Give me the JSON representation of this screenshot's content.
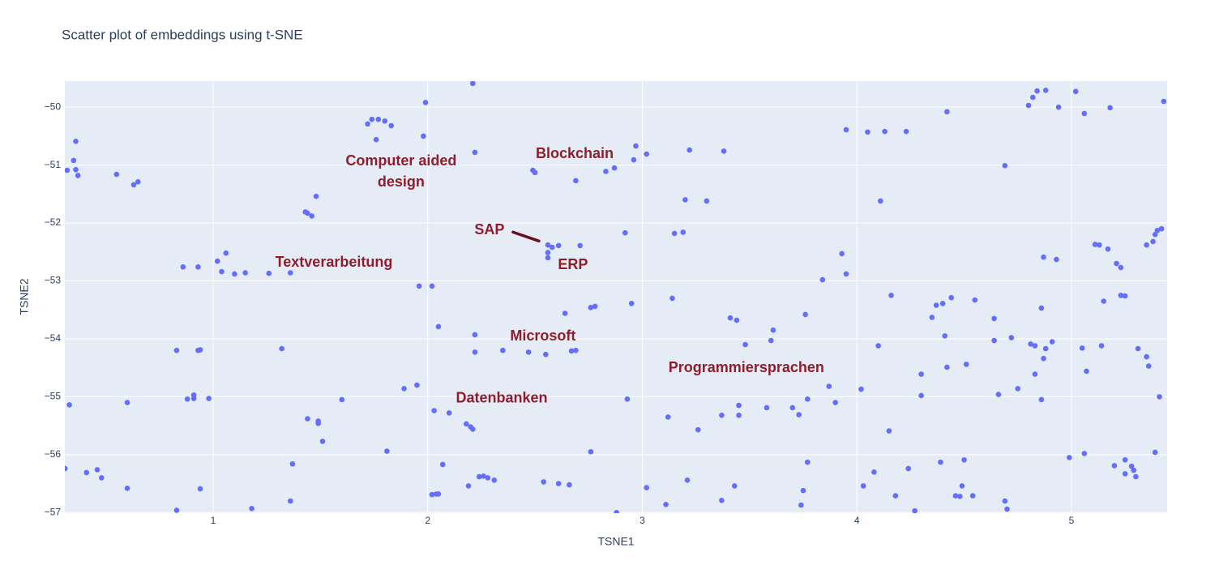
{
  "chart_data": {
    "type": "scatter",
    "title": "Scatter plot of embeddings using t-SNE",
    "x_label": "TSNE1",
    "y_label": "TSNE2",
    "color": "#636efa",
    "grid": true,
    "xlim": [
      0.309,
      5.446
    ],
    "ylim": [
      -57.01,
      -49.55
    ],
    "xticks": [
      1,
      2,
      3,
      4,
      5
    ],
    "yticks": [
      {
        "value": -50,
        "label": "−50"
      },
      {
        "value": -51,
        "label": "−51"
      },
      {
        "value": -52,
        "label": "−52"
      },
      {
        "value": -53,
        "label": "−53"
      },
      {
        "value": -54,
        "label": "−54"
      },
      {
        "value": -55,
        "label": "−55"
      },
      {
        "value": -56,
        "label": "−56"
      },
      {
        "value": -57,
        "label": "−57"
      }
    ],
    "x": [
      0.32,
      0.35,
      0.36,
      0.36,
      0.37,
      0.33,
      0.31,
      0.55,
      0.63,
      0.65,
      0.86,
      0.93,
      1.02,
      1.04,
      1.06,
      1.1,
      1.15,
      0.83,
      0.93,
      0.94,
      0.88,
      0.91,
      0.91,
      0.98,
      0.6,
      0.48,
      0.6,
      0.41,
      0.46,
      0.83,
      0.94,
      1.18,
      1.26,
      1.36,
      1.32,
      1.37,
      1.36,
      1.44,
      1.49,
      1.49,
      1.51,
      1.6,
      1.43,
      1.44,
      1.46,
      1.48,
      1.72,
      1.74,
      1.77,
      1.8,
      1.83,
      1.76,
      1.98,
      1.99,
      1.81,
      1.89,
      1.95,
      1.96,
      2.02,
      2.05,
      2.03,
      2.1,
      2.07,
      2.02,
      2.04,
      2.05,
      2.18,
      2.2,
      2.21,
      2.22,
      2.22,
      2.19,
      2.24,
      2.26,
      2.28,
      2.31,
      2.21,
      2.22,
      2.35,
      2.47,
      2.55,
      2.49,
      2.5,
      2.56,
      2.58,
      2.61,
      2.56,
      2.56,
      2.71,
      2.69,
      2.64,
      2.67,
      2.69,
      2.76,
      2.78,
      2.83,
      2.87,
      2.54,
      2.61,
      2.66,
      2.76,
      2.88,
      2.92,
      2.97,
      3.02,
      2.96,
      2.95,
      2.93,
      3.02,
      3.11,
      3.14,
      3.15,
      3.19,
      3.2,
      3.22,
      3.3,
      3.12,
      3.21,
      3.26,
      3.38,
      3.37,
      3.37,
      3.41,
      3.43,
      3.44,
      3.45,
      3.45,
      3.48,
      3.58,
      3.61,
      3.6,
      3.7,
      3.73,
      3.76,
      3.77,
      3.77,
      3.75,
      3.74,
      3.84,
      3.87,
      3.9,
      3.93,
      3.95,
      3.95,
      4.02,
      4.03,
      4.05,
      4.08,
      4.1,
      4.11,
      4.13,
      4.16,
      4.15,
      4.18,
      4.23,
      4.24,
      4.27,
      4.3,
      4.3,
      4.35,
      4.37,
      4.4,
      4.39,
      4.41,
      4.42,
      4.42,
      4.44,
      4.46,
      4.48,
      4.49,
      4.5,
      4.51,
      4.54,
      4.55,
      4.64,
      4.64,
      4.66,
      4.69,
      4.7,
      4.69,
      4.72,
      4.75,
      4.8,
      4.82,
      4.84,
      4.88,
      4.86,
      4.81,
      4.83,
      4.83,
      4.86,
      4.87,
      4.87,
      4.88,
      4.91,
      4.93,
      4.94,
      4.99,
      5.02,
      5.06,
      5.05,
      5.06,
      5.07,
      5.18,
      5.11,
      5.13,
      5.14,
      5.15,
      5.17,
      5.21,
      5.23,
      5.23,
      5.25,
      5.2,
      5.25,
      5.25,
      5.28,
      5.29,
      5.3,
      5.31,
      5.35,
      5.36,
      5.35,
      5.38,
      5.39,
      5.4,
      5.42,
      5.39,
      5.41,
      5.43
    ],
    "y": [
      -51.09,
      -50.92,
      -50.59,
      -51.08,
      -51.18,
      -55.14,
      -56.24,
      -51.16,
      -51.34,
      -51.29,
      -52.76,
      -52.76,
      -52.66,
      -52.84,
      -52.52,
      -52.88,
      -52.86,
      -54.2,
      -54.2,
      -54.19,
      -55.04,
      -54.97,
      -55.03,
      -55.03,
      -55.1,
      -56.4,
      -56.58,
      -56.31,
      -56.26,
      -56.96,
      -56.59,
      -56.93,
      -52.87,
      -52.86,
      -54.17,
      -56.16,
      -56.8,
      -55.38,
      -55.46,
      -55.42,
      -55.77,
      -55.05,
      -51.81,
      -51.83,
      -51.88,
      -51.54,
      -50.29,
      -50.21,
      -50.21,
      -50.24,
      -50.32,
      -50.56,
      -50.5,
      -49.92,
      -55.94,
      -54.86,
      -54.8,
      -53.09,
      -53.09,
      -53.79,
      -55.24,
      -55.28,
      -56.17,
      -56.69,
      -56.68,
      -56.68,
      -55.47,
      -55.52,
      -55.56,
      -53.93,
      -54.23,
      -56.54,
      -56.38,
      -56.37,
      -56.4,
      -56.44,
      -49.59,
      -50.78,
      -54.2,
      -54.23,
      -54.27,
      -51.09,
      -51.13,
      -52.38,
      -52.42,
      -52.39,
      -52.51,
      -52.6,
      -52.39,
      -51.27,
      -53.56,
      -54.21,
      -54.2,
      -53.46,
      -53.44,
      -51.11,
      -51.05,
      -56.47,
      -56.5,
      -56.52,
      -55.95,
      -57.0,
      -52.17,
      -50.67,
      -50.81,
      -50.91,
      -53.39,
      -55.04,
      -56.57,
      -56.86,
      -53.3,
      -52.18,
      -52.16,
      -51.6,
      -50.74,
      -51.62,
      -55.35,
      -56.44,
      -55.57,
      -50.76,
      -56.79,
      -55.32,
      -53.64,
      -56.54,
      -53.68,
      -55.15,
      -55.32,
      -54.1,
      -55.19,
      -53.85,
      -54.03,
      -55.19,
      -55.31,
      -53.58,
      -55.04,
      -56.13,
      -56.62,
      -56.87,
      -52.98,
      -54.82,
      -55.1,
      -52.53,
      -52.88,
      -50.39,
      -54.87,
      -56.54,
      -50.43,
      -56.3,
      -54.12,
      -51.62,
      -50.42,
      -53.25,
      -55.59,
      -56.71,
      -50.42,
      -56.24,
      -56.97,
      -54.61,
      -54.98,
      -53.63,
      -53.42,
      -53.39,
      -56.13,
      -53.95,
      -50.08,
      -54.49,
      -53.29,
      -56.71,
      -56.72,
      -56.54,
      -56.09,
      -54.44,
      -56.71,
      -53.33,
      -53.65,
      -54.03,
      -54.96,
      -56.8,
      -56.94,
      -51.01,
      -53.98,
      -54.86,
      -49.97,
      -49.83,
      -49.72,
      -49.71,
      -55.05,
      -54.09,
      -54.12,
      -54.61,
      -53.47,
      -52.59,
      -54.34,
      -54.17,
      -54.05,
      -52.63,
      -50.0,
      -56.05,
      -49.73,
      -50.11,
      -54.16,
      -55.98,
      -54.56,
      -50.01,
      -52.37,
      -52.38,
      -54.12,
      -53.35,
      -52.45,
      -52.7,
      -52.77,
      -53.25,
      -53.26,
      -56.19,
      -56.09,
      -56.33,
      -56.2,
      -56.27,
      -56.38,
      -54.17,
      -54.31,
      -54.47,
      -52.38,
      -52.32,
      -52.2,
      -52.13,
      -52.1,
      -55.96,
      -55.0,
      -49.9
    ],
    "annotations": [
      {
        "lines": [
          "Computer aided",
          "design"
        ],
        "x": 1.876,
        "y": -51.12
      },
      {
        "lines": [
          "Blockchain"
        ],
        "x": 2.685,
        "y": -50.81
      },
      {
        "lines": [
          "SAP"
        ],
        "x": 2.288,
        "y": -52.13,
        "arrow": true
      },
      {
        "lines": [
          "Textverarbeitung"
        ],
        "x": 1.563,
        "y": -52.69
      },
      {
        "lines": [
          "ERP"
        ],
        "x": 2.677,
        "y": -52.73
      },
      {
        "lines": [
          "Microsoft"
        ],
        "x": 2.537,
        "y": -53.96
      },
      {
        "lines": [
          "Programmiersprachen"
        ],
        "x": 3.485,
        "y": -54.51
      },
      {
        "lines": [
          "Datenbanken"
        ],
        "x": 2.345,
        "y": -55.03
      }
    ]
  }
}
